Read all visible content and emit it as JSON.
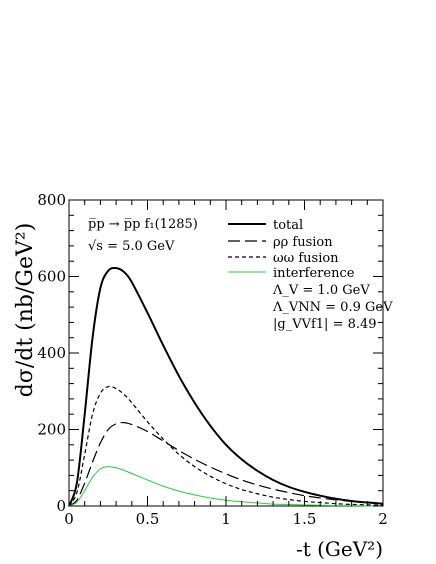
{
  "chart_data": {
    "type": "line",
    "xlabel": "-t (GeV²)",
    "ylabel": "dσ/dt (nb/GeV²)",
    "xlim": [
      0,
      2
    ],
    "ylim": [
      0,
      800
    ],
    "xticks": [
      "0",
      "0.5",
      "1",
      "1.5",
      "2"
    ],
    "yticks": [
      "0",
      "200",
      "400",
      "600",
      "800"
    ],
    "grid": false,
    "legend_position": "top-right",
    "annotations": [
      "p̅p → p̅p f₁(1285)",
      "√s = 5.0 GeV",
      "Λ_V = 1.0 GeV",
      "Λ_VNN = 0.9 GeV",
      "|g_VVf1| = 8.49"
    ],
    "x": [
      0,
      0.05,
      0.1,
      0.15,
      0.2,
      0.25,
      0.3,
      0.35,
      0.4,
      0.5,
      0.6,
      0.7,
      0.8,
      0.9,
      1.0,
      1.1,
      1.2,
      1.3,
      1.4,
      1.5,
      1.6,
      1.7,
      1.8,
      1.9,
      2.0
    ],
    "series": [
      {
        "name": "total",
        "style": "solid",
        "color": "#000000",
        "values": [
          0,
          60,
          240,
          440,
          570,
          615,
          622,
          612,
          585,
          505,
          420,
          340,
          270,
          210,
          160,
          122,
          92,
          68,
          50,
          37,
          27,
          19,
          13,
          9,
          6
        ]
      },
      {
        "name": "ρρ fusion",
        "style": "longdash",
        "color": "#000000",
        "values": [
          0,
          15,
          60,
          115,
          165,
          200,
          215,
          218,
          213,
          195,
          170,
          145,
          122,
          102,
          84,
          68,
          55,
          44,
          35,
          27,
          21,
          16,
          12,
          9,
          6
        ]
      },
      {
        "name": "ωω fusion",
        "style": "dash",
        "color": "#000000",
        "values": [
          0,
          35,
          135,
          240,
          295,
          312,
          307,
          292,
          270,
          220,
          175,
          135,
          103,
          78,
          58,
          43,
          32,
          23,
          17,
          12,
          9,
          6,
          4,
          3,
          2
        ]
      },
      {
        "name": "interference",
        "style": "solid",
        "color": "#2ecc40",
        "values": [
          0,
          10,
          40,
          75,
          97,
          103,
          100,
          93,
          85,
          68,
          52,
          39,
          29,
          21,
          15,
          11,
          8,
          5,
          4,
          3,
          2,
          1,
          1,
          0,
          0
        ]
      }
    ]
  }
}
